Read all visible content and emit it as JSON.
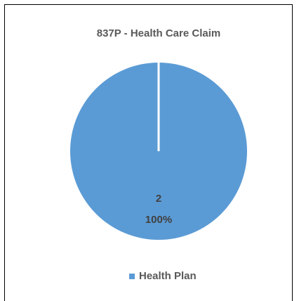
{
  "chart_data": {
    "type": "pie",
    "title": "837P - Health Care Claim",
    "categories": [
      "Health Plan"
    ],
    "values": [
      2
    ],
    "percent_labels": [
      "100%"
    ],
    "colors": [
      "#5b9bd5"
    ],
    "legend": "bottom"
  }
}
